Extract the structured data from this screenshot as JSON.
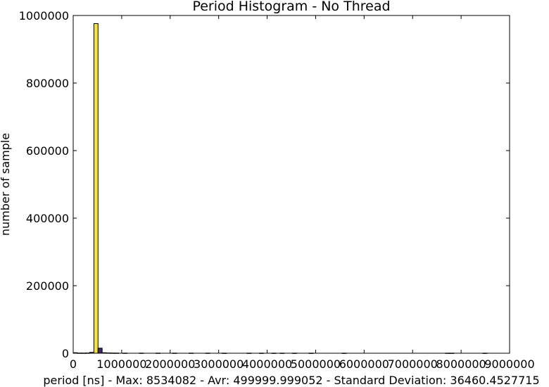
{
  "chart_data": {
    "type": "bar",
    "title": "Period Histogram - No Thread",
    "xlabel": "period [ns] - Max: 8534082 - Avr: 499999.999052 - Standard Deviation: 36460.4527715",
    "ylabel": "number of sample",
    "xlim": [
      0,
      9000000
    ],
    "ylim": [
      0,
      1000000
    ],
    "x_ticks": [
      0,
      1000000,
      2000000,
      3000000,
      4000000,
      5000000,
      6000000,
      7000000,
      8000000,
      9000000
    ],
    "x_tick_labels": [
      "0",
      "1000000",
      "2000000",
      "3000000",
      "4000000",
      "5000000",
      "6000000",
      "7000000",
      "8000000",
      "9000000"
    ],
    "y_ticks": [
      0,
      200000,
      400000,
      600000,
      800000,
      1000000
    ],
    "y_tick_labels": [
      "0",
      "200000",
      "400000",
      "600000",
      "800000",
      "1000000"
    ],
    "grid": false,
    "bin_width": 85340,
    "bins": [
      {
        "x": 0,
        "value": 1500,
        "color": "#2c1e5c"
      },
      {
        "x": 85340,
        "value": 600,
        "color": "#2c1e5c"
      },
      {
        "x": 170680,
        "value": 500,
        "color": "#2c1e5c"
      },
      {
        "x": 256020,
        "value": 700,
        "color": "#2c1e5c"
      },
      {
        "x": 341360,
        "value": 2500,
        "color": "#2c1e5c"
      },
      {
        "x": 426700,
        "value": 976000,
        "color": "#f2e14a"
      },
      {
        "x": 512040,
        "value": 15000,
        "color": "#3b2a6e"
      },
      {
        "x": 597380,
        "value": 1500,
        "color": "#2c1e5c"
      },
      {
        "x": 682720,
        "value": 900,
        "color": "#2c1e5c"
      },
      {
        "x": 768060,
        "value": 600,
        "color": "#2c1e5c"
      },
      {
        "x": 853400,
        "value": 500,
        "color": "#2c1e5c"
      },
      {
        "x": 1024080,
        "value": 400,
        "color": "#2c1e5c"
      },
      {
        "x": 1365440,
        "value": 400,
        "color": "#2c1e5c"
      },
      {
        "x": 1706800,
        "value": 400,
        "color": "#2c1e5c"
      },
      {
        "x": 2048160,
        "value": 400,
        "color": "#2c1e5c"
      },
      {
        "x": 2389520,
        "value": 400,
        "color": "#2c1e5c"
      },
      {
        "x": 2730880,
        "value": 400,
        "color": "#2c1e5c"
      },
      {
        "x": 3072240,
        "value": 300,
        "color": "#2c1e5c"
      },
      {
        "x": 3584280,
        "value": 300,
        "color": "#2c1e5c"
      },
      {
        "x": 3840300,
        "value": 300,
        "color": "#2c1e5c"
      },
      {
        "x": 4096320,
        "value": 300,
        "color": "#2c1e5c"
      },
      {
        "x": 4267000,
        "value": 300,
        "color": "#2c1e5c"
      },
      {
        "x": 4522320,
        "value": 300,
        "color": "#2c1e5c"
      },
      {
        "x": 4864680,
        "value": 300,
        "color": "#2c1e5c"
      },
      {
        "x": 5546400,
        "value": 300,
        "color": "#2c1e5c"
      },
      {
        "x": 7680600,
        "value": 300,
        "color": "#2c1e5c"
      },
      {
        "x": 7765940,
        "value": 300,
        "color": "#2c1e5c"
      },
      {
        "x": 8448740,
        "value": 300,
        "color": "#2c1e5c"
      }
    ]
  }
}
